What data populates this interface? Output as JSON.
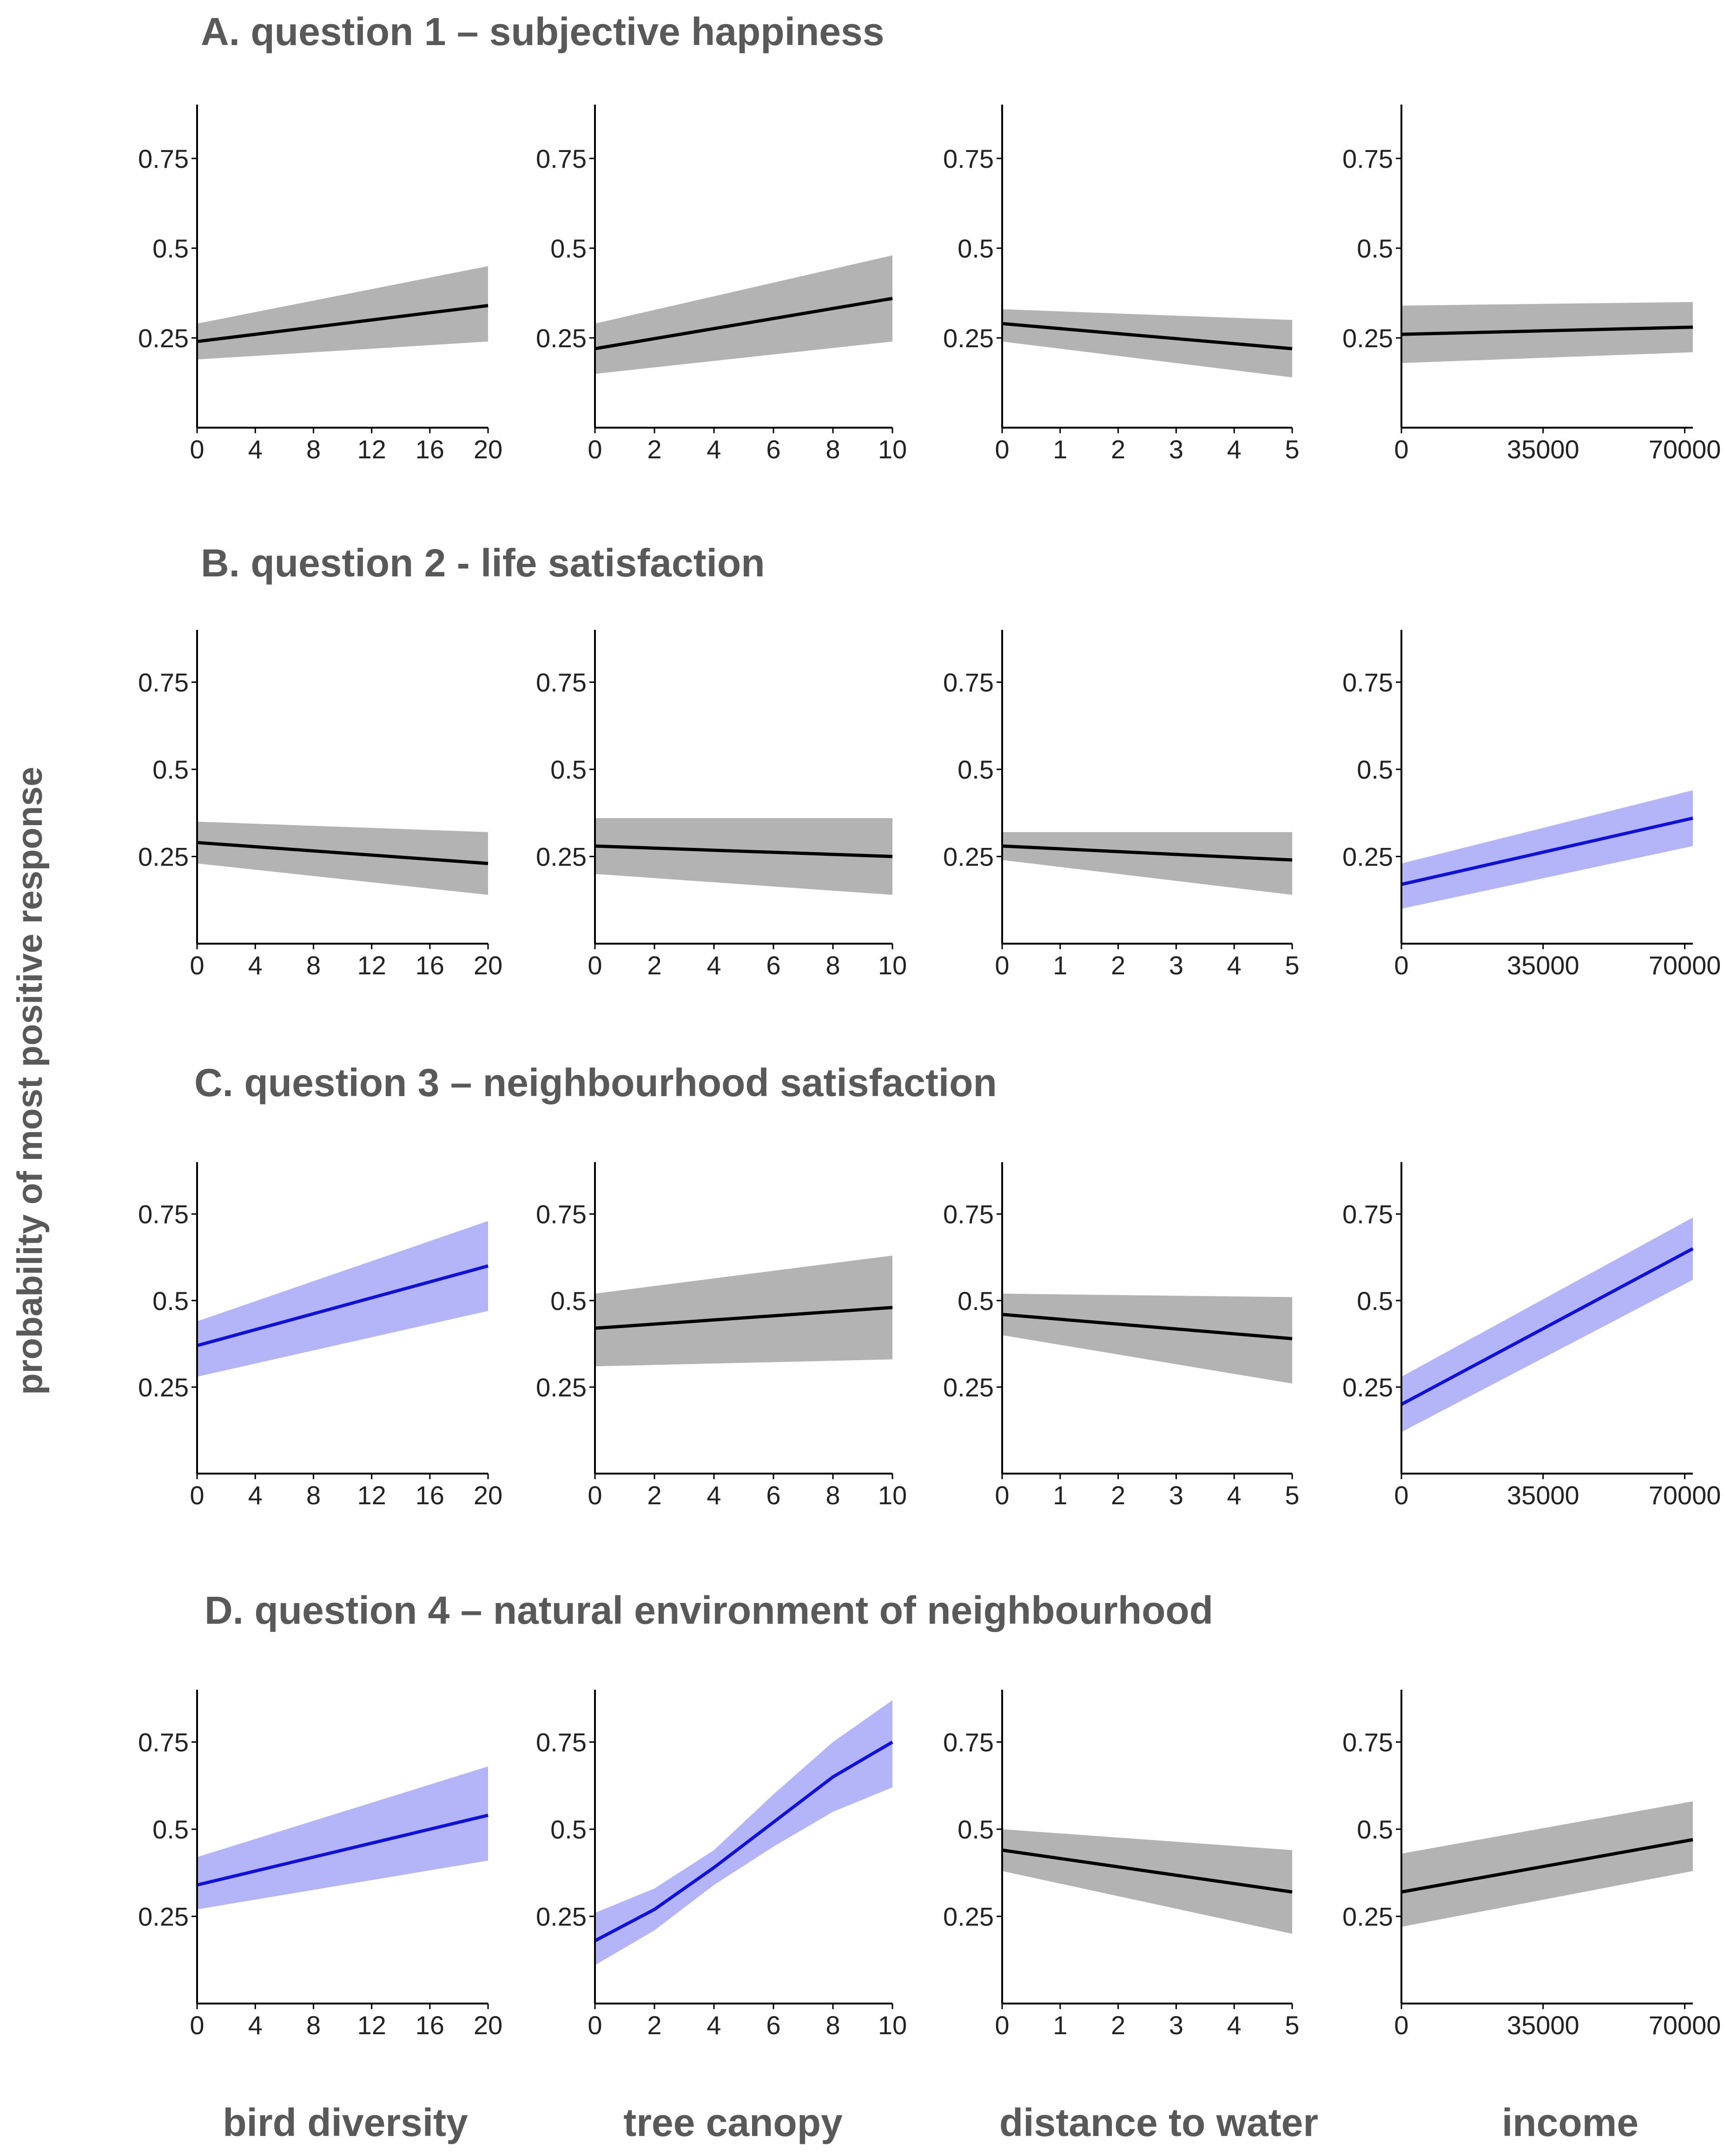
{
  "figure": {
    "y_title": "probability of most positive response",
    "column_labels": [
      "bird diversity",
      "tree canopy",
      "distance to water",
      "income"
    ],
    "row_titles": [
      "A. question 1 – subjective happiness",
      "B. question 2 - life satisfaction",
      "C. question 3 – neighbourhood satisfaction",
      "D. question 4 – natural environment of neighbourhood"
    ]
  },
  "colors": {
    "nonsignificant_line": "#000000",
    "nonsignificant_band": "#b3b3b3",
    "significant_line": "#1010dd",
    "significant_band": "#b4b4f8"
  },
  "chart_data": [
    {
      "id": "A-bird",
      "type": "line",
      "significant": false,
      "xlim": [
        0,
        20
      ],
      "xticks": [
        0,
        4,
        8,
        12,
        16,
        20
      ],
      "ylim": [
        0,
        0.9
      ],
      "yticks": [
        0.25,
        0.5,
        0.75
      ],
      "x": [
        0,
        20
      ],
      "y": [
        0.24,
        0.34
      ],
      "lower": [
        0.19,
        0.24
      ],
      "upper": [
        0.29,
        0.45
      ]
    },
    {
      "id": "A-tree",
      "type": "line",
      "significant": false,
      "xlim": [
        0,
        10
      ],
      "xticks": [
        0,
        2,
        4,
        6,
        8,
        10
      ],
      "ylim": [
        0,
        0.9
      ],
      "yticks": [
        0.25,
        0.5,
        0.75
      ],
      "x": [
        0,
        10
      ],
      "y": [
        0.22,
        0.36
      ],
      "lower": [
        0.15,
        0.24
      ],
      "upper": [
        0.29,
        0.48
      ]
    },
    {
      "id": "A-water",
      "type": "line",
      "significant": false,
      "xlim": [
        0,
        5
      ],
      "xticks": [
        0,
        1,
        2,
        3,
        4,
        5
      ],
      "ylim": [
        0,
        0.9
      ],
      "yticks": [
        0.25,
        0.5,
        0.75
      ],
      "x": [
        0,
        5
      ],
      "y": [
        0.29,
        0.22
      ],
      "lower": [
        0.24,
        0.14
      ],
      "upper": [
        0.33,
        0.3
      ]
    },
    {
      "id": "A-income",
      "type": "line",
      "significant": false,
      "xlim": [
        0,
        72000
      ],
      "xticks": [
        0,
        35000,
        70000
      ],
      "ylim": [
        0,
        0.9
      ],
      "yticks": [
        0.25,
        0.5,
        0.75
      ],
      "x": [
        0,
        72000
      ],
      "y": [
        0.26,
        0.28
      ],
      "lower": [
        0.18,
        0.21
      ],
      "upper": [
        0.34,
        0.35
      ]
    },
    {
      "id": "B-bird",
      "type": "line",
      "significant": false,
      "xlim": [
        0,
        20
      ],
      "xticks": [
        0,
        4,
        8,
        12,
        16,
        20
      ],
      "ylim": [
        0,
        0.9
      ],
      "yticks": [
        0.25,
        0.5,
        0.75
      ],
      "x": [
        0,
        20
      ],
      "y": [
        0.29,
        0.23
      ],
      "lower": [
        0.23,
        0.14
      ],
      "upper": [
        0.35,
        0.32
      ]
    },
    {
      "id": "B-tree",
      "type": "line",
      "significant": false,
      "xlim": [
        0,
        10
      ],
      "xticks": [
        0,
        2,
        4,
        6,
        8,
        10
      ],
      "ylim": [
        0,
        0.9
      ],
      "yticks": [
        0.25,
        0.5,
        0.75
      ],
      "x": [
        0,
        10
      ],
      "y": [
        0.28,
        0.25
      ],
      "lower": [
        0.2,
        0.14
      ],
      "upper": [
        0.36,
        0.36
      ]
    },
    {
      "id": "B-water",
      "type": "line",
      "significant": false,
      "xlim": [
        0,
        5
      ],
      "xticks": [
        0,
        1,
        2,
        3,
        4,
        5
      ],
      "ylim": [
        0,
        0.9
      ],
      "yticks": [
        0.25,
        0.5,
        0.75
      ],
      "x": [
        0,
        5
      ],
      "y": [
        0.28,
        0.24
      ],
      "lower": [
        0.24,
        0.14
      ],
      "upper": [
        0.32,
        0.32
      ]
    },
    {
      "id": "B-income",
      "type": "line",
      "significant": true,
      "xlim": [
        0,
        72000
      ],
      "xticks": [
        0,
        35000,
        70000
      ],
      "ylim": [
        0,
        0.9
      ],
      "yticks": [
        0.25,
        0.5,
        0.75
      ],
      "x": [
        0,
        72000
      ],
      "y": [
        0.17,
        0.36
      ],
      "lower": [
        0.1,
        0.28
      ],
      "upper": [
        0.23,
        0.44
      ]
    },
    {
      "id": "C-bird",
      "type": "line",
      "significant": true,
      "xlim": [
        0,
        20
      ],
      "xticks": [
        0,
        4,
        8,
        12,
        16,
        20
      ],
      "ylim": [
        0,
        0.9
      ],
      "yticks": [
        0.25,
        0.5,
        0.75
      ],
      "x": [
        0,
        20
      ],
      "y": [
        0.37,
        0.6
      ],
      "lower": [
        0.28,
        0.47
      ],
      "upper": [
        0.44,
        0.73
      ]
    },
    {
      "id": "C-tree",
      "type": "line",
      "significant": false,
      "xlim": [
        0,
        10
      ],
      "xticks": [
        0,
        2,
        4,
        6,
        8,
        10
      ],
      "ylim": [
        0,
        0.9
      ],
      "yticks": [
        0.25,
        0.5,
        0.75
      ],
      "x": [
        0,
        10
      ],
      "y": [
        0.42,
        0.48
      ],
      "lower": [
        0.31,
        0.33
      ],
      "upper": [
        0.52,
        0.63
      ]
    },
    {
      "id": "C-water",
      "type": "line",
      "significant": false,
      "xlim": [
        0,
        5
      ],
      "xticks": [
        0,
        1,
        2,
        3,
        4,
        5
      ],
      "ylim": [
        0,
        0.9
      ],
      "yticks": [
        0.25,
        0.5,
        0.75
      ],
      "x": [
        0,
        5
      ],
      "y": [
        0.46,
        0.39
      ],
      "lower": [
        0.4,
        0.26
      ],
      "upper": [
        0.52,
        0.51
      ]
    },
    {
      "id": "C-income",
      "type": "line",
      "significant": true,
      "xlim": [
        0,
        72000
      ],
      "xticks": [
        0,
        35000,
        70000
      ],
      "ylim": [
        0,
        0.9
      ],
      "yticks": [
        0.25,
        0.5,
        0.75
      ],
      "x": [
        0,
        72000
      ],
      "y": [
        0.2,
        0.65
      ],
      "lower": [
        0.12,
        0.56
      ],
      "upper": [
        0.28,
        0.74
      ]
    },
    {
      "id": "D-bird",
      "type": "line",
      "significant": true,
      "xlim": [
        0,
        20
      ],
      "xticks": [
        0,
        4,
        8,
        12,
        16,
        20
      ],
      "ylim": [
        0,
        0.9
      ],
      "yticks": [
        0.25,
        0.5,
        0.75
      ],
      "x": [
        0,
        20
      ],
      "y": [
        0.34,
        0.54
      ],
      "lower": [
        0.27,
        0.41
      ],
      "upper": [
        0.42,
        0.68
      ]
    },
    {
      "id": "D-tree",
      "type": "line",
      "significant": true,
      "xlim": [
        0,
        10
      ],
      "xticks": [
        0,
        2,
        4,
        6,
        8,
        10
      ],
      "ylim": [
        0,
        0.9
      ],
      "yticks": [
        0.25,
        0.5,
        0.75
      ],
      "x": [
        0,
        2,
        4,
        6,
        8,
        10
      ],
      "y": [
        0.18,
        0.27,
        0.39,
        0.52,
        0.65,
        0.75
      ],
      "lower": [
        0.11,
        0.21,
        0.34,
        0.45,
        0.55,
        0.62
      ],
      "upper": [
        0.26,
        0.33,
        0.44,
        0.6,
        0.75,
        0.87
      ]
    },
    {
      "id": "D-water",
      "type": "line",
      "significant": false,
      "xlim": [
        0,
        5
      ],
      "xticks": [
        0,
        1,
        2,
        3,
        4,
        5
      ],
      "ylim": [
        0,
        0.9
      ],
      "yticks": [
        0.25,
        0.5,
        0.75
      ],
      "x": [
        0,
        5
      ],
      "y": [
        0.44,
        0.32
      ],
      "lower": [
        0.38,
        0.2
      ],
      "upper": [
        0.5,
        0.44
      ]
    },
    {
      "id": "D-income",
      "type": "line",
      "significant": false,
      "xlim": [
        0,
        72000
      ],
      "xticks": [
        0,
        35000,
        70000
      ],
      "ylim": [
        0,
        0.9
      ],
      "yticks": [
        0.25,
        0.5,
        0.75
      ],
      "x": [
        0,
        72000
      ],
      "y": [
        0.32,
        0.47
      ],
      "lower": [
        0.22,
        0.38
      ],
      "upper": [
        0.43,
        0.58
      ]
    }
  ]
}
